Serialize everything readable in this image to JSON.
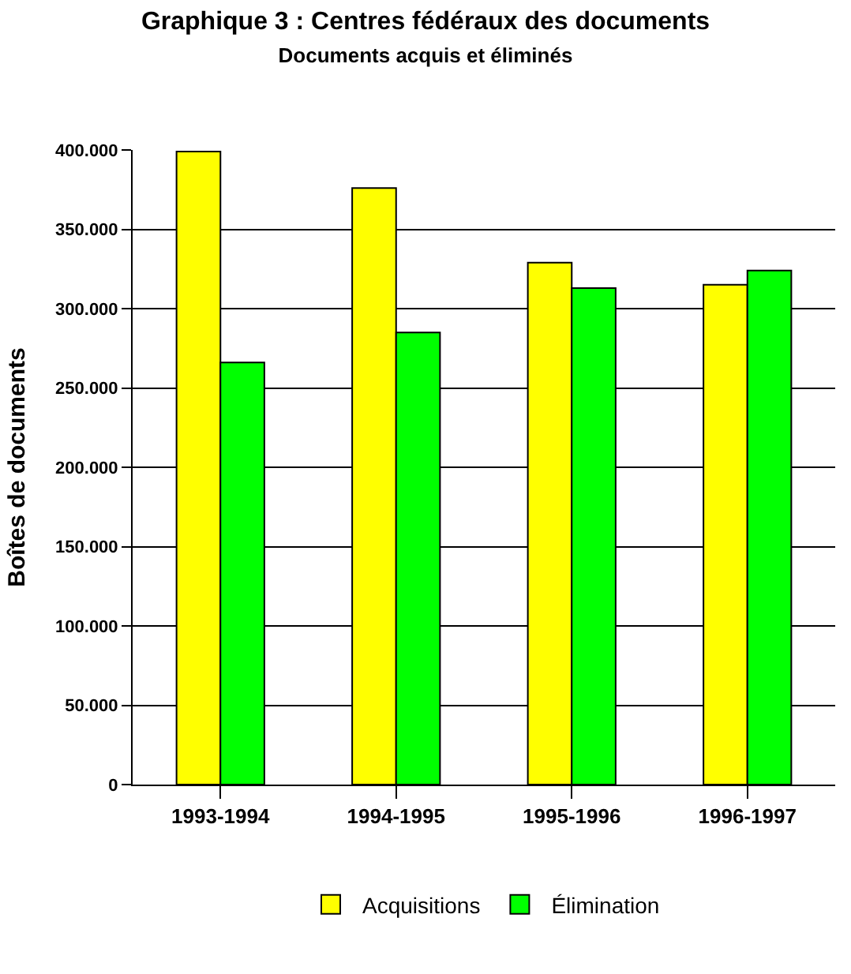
{
  "chart_data": {
    "type": "bar",
    "title": "Graphique 3 : Centres fédéraux des documents",
    "subtitle": "Documents acquis et éliminés",
    "ylabel": "Boîtes de documents",
    "categories": [
      "1993-1994",
      "1994-1995",
      "1995-1996",
      "1996-1997"
    ],
    "series": [
      {
        "name": "Acquisitions",
        "color": "#ffff00",
        "values": [
          399000,
          376000,
          329000,
          315000
        ]
      },
      {
        "name": "Élimination",
        "color": "#00ff00",
        "values": [
          266000,
          285000,
          313000,
          324000
        ]
      }
    ],
    "ylim": [
      0,
      400000
    ],
    "yticks": [
      {
        "value": 0,
        "label": "0"
      },
      {
        "value": 50000,
        "label": "50.000"
      },
      {
        "value": 100000,
        "label": "100.000"
      },
      {
        "value": 150000,
        "label": "150.000"
      },
      {
        "value": 200000,
        "label": "200.000"
      },
      {
        "value": 250000,
        "label": "250.000"
      },
      {
        "value": 300000,
        "label": "300.000"
      },
      {
        "value": 350000,
        "label": "350.000"
      },
      {
        "value": 400000,
        "label": "400.000"
      }
    ],
    "grid": "y",
    "legend": "bottom"
  }
}
